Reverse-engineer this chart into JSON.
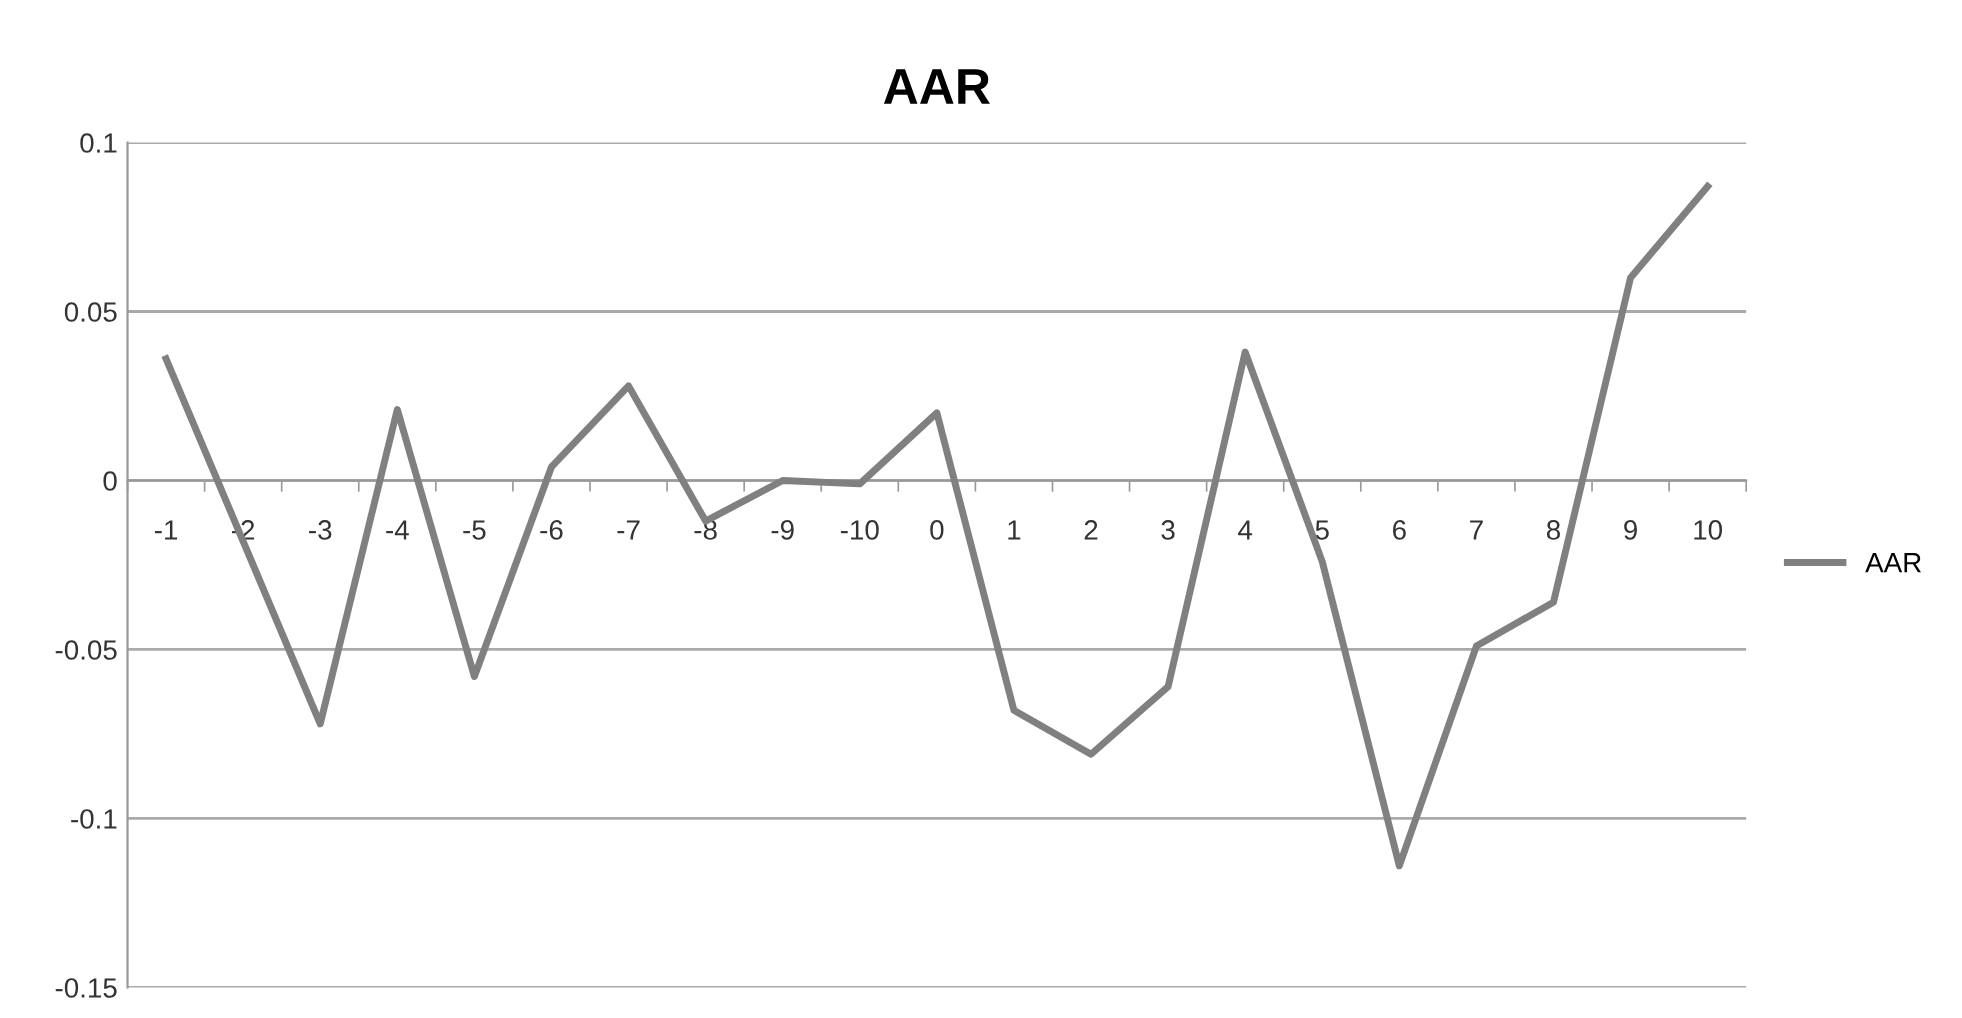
{
  "chart_data": {
    "type": "line",
    "title": "AAR",
    "categories": [
      "-1",
      "-2",
      "-3",
      "-4",
      "-5",
      "-6",
      "-7",
      "-8",
      "-9",
      "-10",
      "0",
      "1",
      "2",
      "3",
      "4",
      "5",
      "6",
      "7",
      "8",
      "9",
      "10"
    ],
    "series": [
      {
        "name": "AAR",
        "color": "#808080",
        "values": [
          0.036,
          -0.018,
          -0.072,
          0.021,
          -0.058,
          0.004,
          0.028,
          -0.012,
          0.0,
          -0.001,
          0.02,
          -0.068,
          -0.081,
          -0.061,
          0.038,
          -0.024,
          -0.114,
          -0.049,
          -0.036,
          0.06,
          0.087
        ]
      }
    ],
    "ylim": [
      -0.15,
      0.1
    ],
    "yticks": [
      -0.15,
      -0.1,
      -0.05,
      0,
      0.05,
      0.1
    ],
    "grid": "y",
    "legend": "right",
    "marker": "none",
    "line_style": "solid"
  }
}
